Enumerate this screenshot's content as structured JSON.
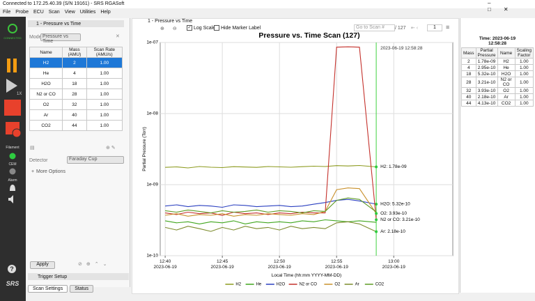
{
  "window": {
    "title": "Connected to 172.25.40.39 (S/N 19161) - SRS RGASoft"
  },
  "menu": [
    "File",
    "Probe",
    "ECU",
    "Scan",
    "View",
    "Utilities",
    "Help"
  ],
  "toolbar": {
    "logo": "CONNECTED",
    "speed": "1X",
    "filament": "Filament",
    "cem": "CEM",
    "alarm": "Alarm",
    "help": "?",
    "brand": "SRS"
  },
  "settings": {
    "tab": "1 - Pressure vs Time",
    "mode_label": "Mode",
    "mode": "Pressure vs Time",
    "table": {
      "headers": [
        "Name",
        "Mass\n(AMU)",
        "Scan Rate\n(AMU/s)"
      ],
      "rows": [
        [
          "H2",
          "2",
          "1.00"
        ],
        [
          "He",
          "4",
          "1.00"
        ],
        [
          "H2O",
          "18",
          "1.00"
        ],
        [
          "N2 or CO",
          "28",
          "1.00"
        ],
        [
          "O2",
          "32",
          "1.00"
        ],
        [
          "Ar",
          "40",
          "1.00"
        ],
        [
          "CO2",
          "44",
          "1.00"
        ]
      ]
    },
    "detector_label": "Detector",
    "detector": "Faraday Cup",
    "more": "More Options",
    "apply": "Apply",
    "trigger": "Trigger Setup",
    "tabs": [
      "Scan Settings",
      "Status"
    ]
  },
  "chart_panel": {
    "tab": "1 - Pressure vs Time",
    "log_scale": "Log Scale",
    "hide_marker": "Hide Marker Label",
    "goto": "Go to Scan #",
    "of": "/ 127",
    "page": "1"
  },
  "readout": {
    "time": "Time: 2023-06-19",
    "clock": "12:58:28",
    "table": {
      "headers": [
        "Mass",
        "Partial\nPressure",
        "Name",
        "Scaling\nFactor"
      ],
      "rows": [
        [
          "2",
          "1.78e-09",
          "H2",
          "1.00"
        ],
        [
          "4",
          "2.95e-10",
          "He",
          "1.00"
        ],
        [
          "18",
          "5.32e-10",
          "H2O",
          "1.00"
        ],
        [
          "28",
          "3.21e-10",
          "N2 or CO",
          "1.00"
        ],
        [
          "32",
          "3.93e-10",
          "O2",
          "1.00"
        ],
        [
          "40",
          "2.18e-10",
          "Ar",
          "1.00"
        ],
        [
          "44",
          "4.13e-10",
          "CO2",
          "1.00"
        ]
      ]
    }
  },
  "chart_data": {
    "type": "line",
    "title": "Pressure vs. Time Scan (127)",
    "xlabel": "Local Time (hh:mm YYYY-MM-DD)",
    "ylabel": "Partial Pressure (Torr)",
    "log_y": true,
    "grid": true,
    "legend": "bottom",
    "marker_label": "2023-06-19 12:58:28",
    "x": [
      "2023-06-19 12:40",
      "2023-06-19 12:41",
      "2023-06-19 12:42",
      "2023-06-19 12:43",
      "2023-06-19 12:44",
      "2023-06-19 12:45",
      "2023-06-19 12:46",
      "2023-06-19 12:47",
      "2023-06-19 12:48",
      "2023-06-19 12:49",
      "2023-06-19 12:50",
      "2023-06-19 12:51",
      "2023-06-19 12:52",
      "2023-06-19 12:53",
      "2023-06-19 12:54",
      "2023-06-19 12:55",
      "2023-06-19 12:56",
      "2023-06-19 12:57",
      "2023-06-19 12:58:28"
    ],
    "xlim": [
      "2023-06-19 12:39:34",
      "2023-06-19 13:05:10"
    ],
    "xticks": [
      {
        "value": "2023-06-19 12:40",
        "label": "12:40\n2023-06-19"
      },
      {
        "value": "2023-06-19 12:45",
        "label": "12:45\n2023-06-19"
      },
      {
        "value": "2023-06-19 12:50",
        "label": "12:50\n2023-06-19"
      },
      {
        "value": "2023-06-19 12:55",
        "label": "12:55\n2023-06-19"
      },
      {
        "value": "2023-06-19 13:00",
        "label": "13:00\n2023-06-19"
      }
    ],
    "ylim": [
      1e-10,
      1e-07
    ],
    "yticks": [
      {
        "value": 1e-10,
        "label": "1e-10"
      },
      {
        "value": 1e-09,
        "label": "1e-09"
      },
      {
        "value": 1e-08,
        "label": "1e-08"
      },
      {
        "value": 1e-07,
        "label": "1e-07"
      }
    ],
    "series": [
      {
        "name": "H2",
        "color": "#8c9a1e",
        "end_label": "H2: 1.78e-09",
        "values": [
          1.75e-09,
          1.78e-09,
          1.72e-09,
          1.8e-09,
          1.76e-09,
          1.74e-09,
          1.79e-09,
          1.77e-09,
          1.75e-09,
          1.8e-09,
          1.78e-09,
          1.76e-09,
          1.79e-09,
          1.82e-09,
          1.8e-09,
          1.85e-09,
          1.83e-09,
          1.86e-09,
          1.78e-09
        ]
      },
      {
        "name": "He",
        "color": "#3fa51c",
        "values": [
          3.1e-10,
          2.9e-10,
          3e-10,
          2.8e-10,
          3e-10,
          2.9e-10,
          3.1e-10,
          2.8e-10,
          3e-10,
          2.9e-10,
          3e-10,
          2.9e-10,
          3.1e-10,
          3e-10,
          3.2e-10,
          3.1e-10,
          3e-10,
          3.1e-10,
          2.95e-10
        ]
      },
      {
        "name": "H2O",
        "color": "#2a3fc0",
        "end_label": "H2O: 5.32e-10",
        "values": [
          5e-10,
          5.2e-10,
          4.9e-10,
          5.1e-10,
          5e-10,
          4.8e-10,
          5.2e-10,
          5.1e-10,
          4.9e-10,
          5e-10,
          5.1e-10,
          4.9e-10,
          5e-10,
          5.3e-10,
          5.6e-10,
          6e-10,
          6.2e-10,
          5.9e-10,
          5.32e-10
        ]
      },
      {
        "name": "N2 or CO",
        "color": "#c4302b",
        "end_label": "N2 or CO: 3.21e-10",
        "values": [
          4e-10,
          3.8e-10,
          4.1e-10,
          3.9e-10,
          4e-10,
          3.7e-10,
          4.1e-10,
          3.9e-10,
          4e-10,
          3.8e-10,
          4e-10,
          3.9e-10,
          4.1e-10,
          4e-10,
          4e-10,
          8.6e-08,
          8.7e-08,
          8.6e-08,
          3.21e-10
        ]
      },
      {
        "name": "O2",
        "color": "#c8902a",
        "end_label": "O2: 3.93e-10",
        "values": [
          3.7e-10,
          3.9e-10,
          3.6e-10,
          3.8e-10,
          3.7e-10,
          3.9e-10,
          3.6e-10,
          3.8e-10,
          3.7e-10,
          3.9e-10,
          3.8e-10,
          3.7e-10,
          3.9e-10,
          3.8e-10,
          4.2e-10,
          8.5e-10,
          9e-10,
          8.8e-10,
          3.93e-10
        ]
      },
      {
        "name": "Ar",
        "color": "#7b8a2a",
        "end_label": "Ar: 2.18e-10",
        "values": [
          2.5e-10,
          2.3e-10,
          2.6e-10,
          2.4e-10,
          2.2e-10,
          2.5e-10,
          2.3e-10,
          2.6e-10,
          2.4e-10,
          2.5e-10,
          2.3e-10,
          2.6e-10,
          2.4e-10,
          2.5e-10,
          2.4e-10,
          2.9e-10,
          3e-10,
          2.8e-10,
          2.18e-10
        ]
      },
      {
        "name": "CO2",
        "color": "#5c9a22",
        "values": [
          4.3e-10,
          4.1e-10,
          4.4e-10,
          4.2e-10,
          4e-10,
          4.3e-10,
          4.1e-10,
          4.2e-10,
          4.4e-10,
          4.1e-10,
          4.3e-10,
          4.2e-10,
          4e-10,
          4.3e-10,
          4.2e-10,
          6e-10,
          6.5e-10,
          6.2e-10,
          4.13e-10
        ]
      }
    ]
  }
}
